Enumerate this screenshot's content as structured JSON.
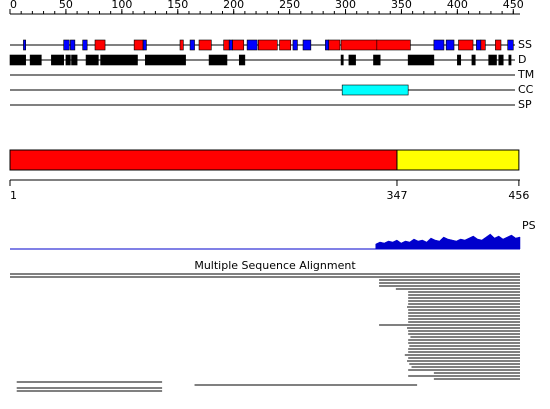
{
  "ruler": {
    "ticks": [
      0,
      50,
      100,
      150,
      200,
      250,
      300,
      350,
      400,
      450
    ],
    "length": 456
  },
  "tracks": [
    {
      "label": "SS",
      "segments": [
        {
          "start": 12,
          "end": 14,
          "color": "#0000ff"
        },
        {
          "start": 48,
          "end": 53,
          "color": "#0000ff"
        },
        {
          "start": 54,
          "end": 58,
          "color": "#0000ff"
        },
        {
          "start": 65,
          "end": 69,
          "color": "#0000ff"
        },
        {
          "start": 76,
          "end": 85,
          "color": "#ff0000"
        },
        {
          "start": 111,
          "end": 119,
          "color": "#ff0000"
        },
        {
          "start": 119,
          "end": 122,
          "color": "#0000ff"
        },
        {
          "start": 152,
          "end": 155,
          "color": "#ff0000"
        },
        {
          "start": 161,
          "end": 165,
          "color": "#0000ff"
        },
        {
          "start": 169,
          "end": 180,
          "color": "#ff0000"
        },
        {
          "start": 191,
          "end": 196,
          "color": "#ff0000"
        },
        {
          "start": 196,
          "end": 199,
          "color": "#0000ff"
        },
        {
          "start": 199,
          "end": 209,
          "color": "#ff0000"
        },
        {
          "start": 212,
          "end": 221,
          "color": "#0000ff"
        },
        {
          "start": 222,
          "end": 239,
          "color": "#ff0000"
        },
        {
          "start": 241,
          "end": 251,
          "color": "#ff0000"
        },
        {
          "start": 253,
          "end": 257,
          "color": "#0000ff"
        },
        {
          "start": 262,
          "end": 269,
          "color": "#0000ff"
        },
        {
          "start": 282,
          "end": 285,
          "color": "#0000ff"
        },
        {
          "start": 285,
          "end": 295,
          "color": "#ff0000"
        },
        {
          "start": 296,
          "end": 328,
          "color": "#ff0000"
        },
        {
          "start": 328,
          "end": 358,
          "color": "#ff0000"
        },
        {
          "start": 379,
          "end": 388,
          "color": "#0000ff"
        },
        {
          "start": 390,
          "end": 397,
          "color": "#0000ff"
        },
        {
          "start": 401,
          "end": 414,
          "color": "#ff0000"
        },
        {
          "start": 417,
          "end": 421,
          "color": "#0000ff"
        },
        {
          "start": 421,
          "end": 425,
          "color": "#ff0000"
        },
        {
          "start": 434,
          "end": 439,
          "color": "#ff0000"
        },
        {
          "start": 445,
          "end": 450,
          "color": "#0000ff"
        }
      ]
    },
    {
      "label": "D",
      "segments": [
        {
          "start": 0,
          "end": 14,
          "color": "#000000"
        },
        {
          "start": 18,
          "end": 28,
          "color": "#000000"
        },
        {
          "start": 37,
          "end": 48,
          "color": "#000000"
        },
        {
          "start": 50,
          "end": 54,
          "color": "#000000"
        },
        {
          "start": 55,
          "end": 60,
          "color": "#000000"
        },
        {
          "start": 68,
          "end": 79,
          "color": "#000000"
        },
        {
          "start": 81,
          "end": 114,
          "color": "#000000"
        },
        {
          "start": 121,
          "end": 157,
          "color": "#000000"
        },
        {
          "start": 178,
          "end": 194,
          "color": "#000000"
        },
        {
          "start": 205,
          "end": 210,
          "color": "#000000"
        },
        {
          "start": 296,
          "end": 298,
          "color": "#000000"
        },
        {
          "start": 303,
          "end": 309,
          "color": "#000000"
        },
        {
          "start": 325,
          "end": 331,
          "color": "#000000"
        },
        {
          "start": 356,
          "end": 379,
          "color": "#000000"
        },
        {
          "start": 400,
          "end": 403,
          "color": "#000000"
        },
        {
          "start": 413,
          "end": 416,
          "color": "#000000"
        },
        {
          "start": 428,
          "end": 435,
          "color": "#000000"
        },
        {
          "start": 437,
          "end": 441,
          "color": "#000000"
        },
        {
          "start": 446,
          "end": 448,
          "color": "#000000"
        }
      ]
    },
    {
      "label": "TM",
      "segments": []
    },
    {
      "label": "CC",
      "segments": [
        {
          "start": 297,
          "end": 356,
          "color": "#00ffff"
        }
      ]
    },
    {
      "label": "SP",
      "segments": []
    }
  ],
  "domains": [
    {
      "start": 1,
      "end": 347,
      "color": "#ff0000"
    },
    {
      "start": 347,
      "end": 456,
      "color": "#ffff00"
    }
  ],
  "domain_axis": {
    "ticks": [
      1,
      347,
      456
    ]
  },
  "ps": {
    "label": "PS",
    "start": 327,
    "end": 456,
    "color": "#0000cc",
    "values": [
      5,
      7,
      6,
      8,
      7,
      9,
      6,
      8,
      7,
      10,
      8,
      9,
      7,
      11,
      9,
      8,
      12,
      10,
      9,
      8,
      10,
      9,
      11,
      13,
      10,
      9,
      12,
      15,
      11,
      13,
      10,
      12,
      14,
      11,
      12
    ]
  },
  "msa": {
    "title": "Multiple Sequence Alignment",
    "hits": [
      [
        1,
        456
      ],
      [
        1,
        456
      ],
      [
        331,
        456
      ],
      [
        331,
        456
      ],
      [
        331,
        456
      ],
      [
        346,
        456
      ],
      [
        357,
        456
      ],
      [
        357,
        456
      ],
      [
        357,
        456
      ],
      [
        357,
        456
      ],
      [
        357,
        456
      ],
      [
        356,
        456
      ],
      [
        357,
        456
      ],
      [
        357,
        456
      ],
      [
        357,
        456
      ],
      [
        357,
        456
      ],
      [
        357,
        456
      ],
      [
        331,
        456
      ],
      [
        356,
        456
      ],
      [
        357,
        456
      ],
      [
        357,
        456
      ],
      [
        359,
        456
      ],
      [
        357,
        456
      ],
      [
        357,
        456
      ],
      [
        358,
        456
      ],
      [
        357,
        456
      ],
      [
        357,
        456
      ],
      [
        354,
        456
      ],
      [
        357,
        456
      ],
      [
        356,
        456
      ],
      [
        358,
        456
      ],
      [
        360,
        456
      ],
      [
        357,
        456
      ],
      [
        380,
        456
      ],
      [
        357,
        456
      ],
      [
        380,
        456
      ],
      [
        7,
        136
      ],
      [
        166,
        364
      ],
      [
        7,
        136
      ],
      [
        7,
        136
      ]
    ]
  }
}
